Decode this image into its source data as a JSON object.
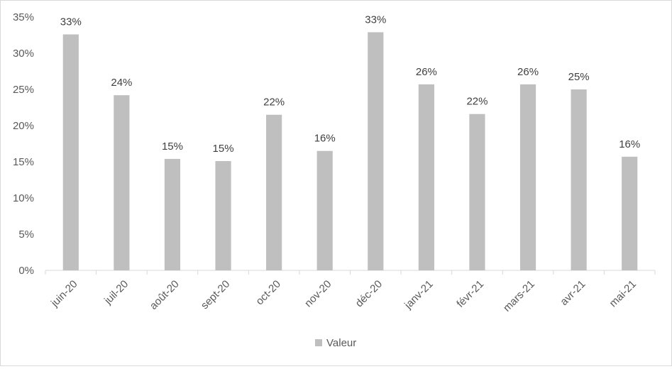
{
  "chart_data": {
    "type": "bar",
    "categories": [
      "juin-20",
      "juil-20",
      "août-20",
      "sept-20",
      "oct-20",
      "nov-20",
      "déc-20",
      "janv-21",
      "févr-21",
      "mars-21",
      "avr-21",
      "mai-21"
    ],
    "series": [
      {
        "name": "Valeur",
        "values": [
          32.6,
          24.2,
          15.4,
          15.1,
          21.5,
          16.5,
          32.9,
          25.7,
          21.6,
          25.7,
          25.0,
          15.7
        ],
        "data_labels": [
          "33%",
          "24%",
          "15%",
          "15%",
          "22%",
          "16%",
          "33%",
          "26%",
          "22%",
          "26%",
          "25%",
          "16%"
        ]
      }
    ],
    "ylim": [
      0,
      35
    ],
    "y_ticks": [
      0,
      5,
      10,
      15,
      20,
      25,
      30,
      35
    ],
    "y_tick_labels": [
      "0%",
      "5%",
      "10%",
      "15%",
      "20%",
      "25%",
      "30%",
      "35%"
    ],
    "grid": false,
    "legend": "bottom-center",
    "colors": {
      "bar": "#bfbfbf",
      "axis": "#d9d9d9"
    }
  }
}
